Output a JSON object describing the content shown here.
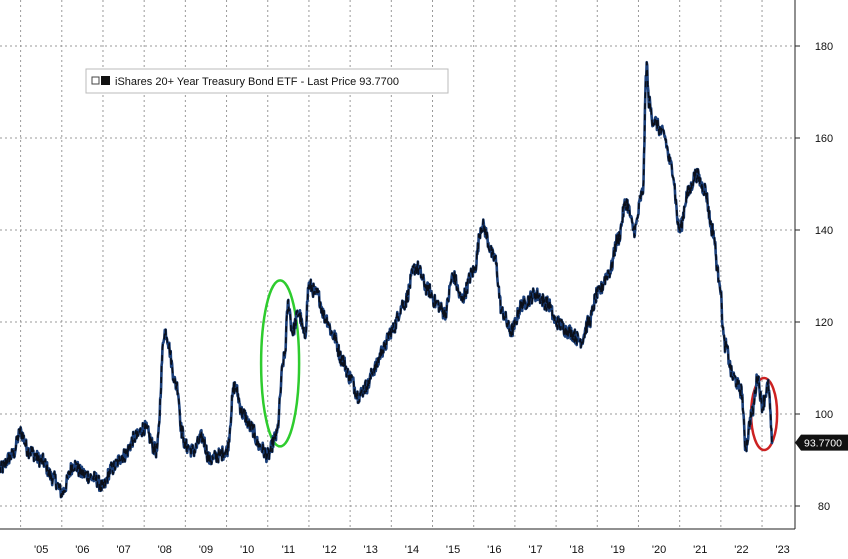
{
  "chart_data": {
    "type": "line",
    "title": "",
    "xlabel": "",
    "ylabel": "",
    "grid": true,
    "legend_position": "top-left",
    "y_axis_side": "right",
    "ylim": [
      75,
      190
    ],
    "xlim": [
      2004.5,
      2023.8
    ],
    "x_tick_labels": [
      "'05",
      "'06",
      "'07",
      "'08",
      "'09",
      "'10",
      "'11",
      "'12",
      "'13",
      "'14",
      "'15",
      "'16",
      "'17",
      "'18",
      "'19",
      "'20",
      "'21",
      "'22",
      "'23"
    ],
    "y_tick_labels": [
      "80",
      "100",
      "120",
      "140",
      "160",
      "180"
    ],
    "y_ticks": [
      80,
      100,
      120,
      140,
      160,
      180
    ],
    "series": [
      {
        "name": "iShares 20+ Year Treasury Bond ETF - Last Price 93.7700",
        "color": "#1a3f7a",
        "x": [
          2004.5,
          2004.8,
          2005.0,
          2005.2,
          2005.5,
          2005.8,
          2006.0,
          2006.3,
          2006.5,
          2006.8,
          2007.0,
          2007.2,
          2007.5,
          2007.8,
          2008.0,
          2008.3,
          2008.5,
          2008.8,
          2008.92,
          2009.0,
          2009.2,
          2009.4,
          2009.6,
          2009.8,
          2010.0,
          2010.2,
          2010.4,
          2010.6,
          2010.8,
          2011.0,
          2011.2,
          2011.4,
          2011.5,
          2011.6,
          2011.75,
          2011.9,
          2012.0,
          2012.2,
          2012.4,
          2012.6,
          2012.8,
          2013.0,
          2013.2,
          2013.4,
          2013.6,
          2013.8,
          2014.0,
          2014.3,
          2014.6,
          2014.9,
          2015.1,
          2015.3,
          2015.5,
          2015.7,
          2016.0,
          2016.2,
          2016.5,
          2016.7,
          2016.9,
          2017.2,
          2017.5,
          2017.8,
          2018.0,
          2018.3,
          2018.6,
          2018.8,
          2019.0,
          2019.3,
          2019.5,
          2019.7,
          2019.9,
          2020.1,
          2020.2,
          2020.25,
          2020.35,
          2020.6,
          2020.8,
          2021.0,
          2021.2,
          2021.4,
          2021.6,
          2021.8,
          2021.95,
          2022.1,
          2022.3,
          2022.5,
          2022.6,
          2022.75,
          2022.9,
          2023.0,
          2023.15,
          2023.25
        ],
        "values": [
          88,
          91,
          96,
          92,
          90,
          86,
          83,
          89,
          87,
          86,
          84,
          88,
          91,
          95,
          97,
          92,
          118,
          106,
          96,
          93,
          92,
          95,
          90,
          91,
          92,
          106,
          100,
          97,
          93,
          91,
          95,
          112,
          124,
          118,
          122,
          117,
          128,
          126,
          121,
          117,
          112,
          108,
          104,
          106,
          110,
          114,
          118,
          124,
          132,
          127,
          124,
          122,
          130,
          125,
          131,
          141,
          134,
          122,
          118,
          124,
          126,
          124,
          120,
          118,
          116,
          120,
          126,
          131,
          138,
          146,
          140,
          148,
          176,
          168,
          164,
          161,
          154,
          140,
          148,
          152,
          149,
          140,
          130,
          115,
          108,
          105,
          93,
          100,
          108,
          102,
          106,
          94
        ]
      }
    ],
    "annotations": [
      {
        "type": "ellipse",
        "color": "#2ecc2e",
        "x_center": 2011.3,
        "y_center": 111
      },
      {
        "type": "ellipse",
        "color": "#cc2222",
        "x_center": 2023.05,
        "y_center": 100
      }
    ],
    "last_price": {
      "label": "93.7700",
      "value": 93.77
    }
  }
}
